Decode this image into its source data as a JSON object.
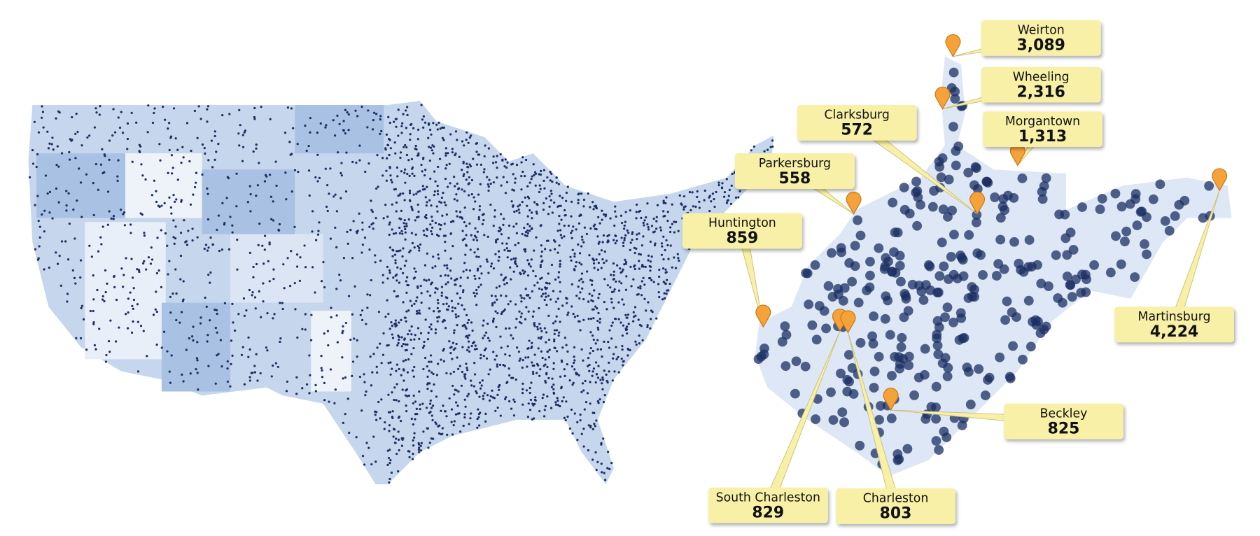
{
  "callouts": [
    {
      "city": "Weirton",
      "count": "3,089"
    },
    {
      "city": "Wheeling",
      "count": "2,316"
    },
    {
      "city": "Morgantown",
      "count": "1,313"
    },
    {
      "city": "Clarksburg",
      "count": "572"
    },
    {
      "city": "Parkersburg",
      "count": "558"
    },
    {
      "city": "Huntington",
      "count": "859"
    },
    {
      "city": "Martinsburg",
      "count": "4,224"
    },
    {
      "city": "Beckley",
      "count": "825"
    },
    {
      "city": "South Charleston",
      "count": "829"
    },
    {
      "city": "Charleston",
      "count": "803"
    }
  ]
}
